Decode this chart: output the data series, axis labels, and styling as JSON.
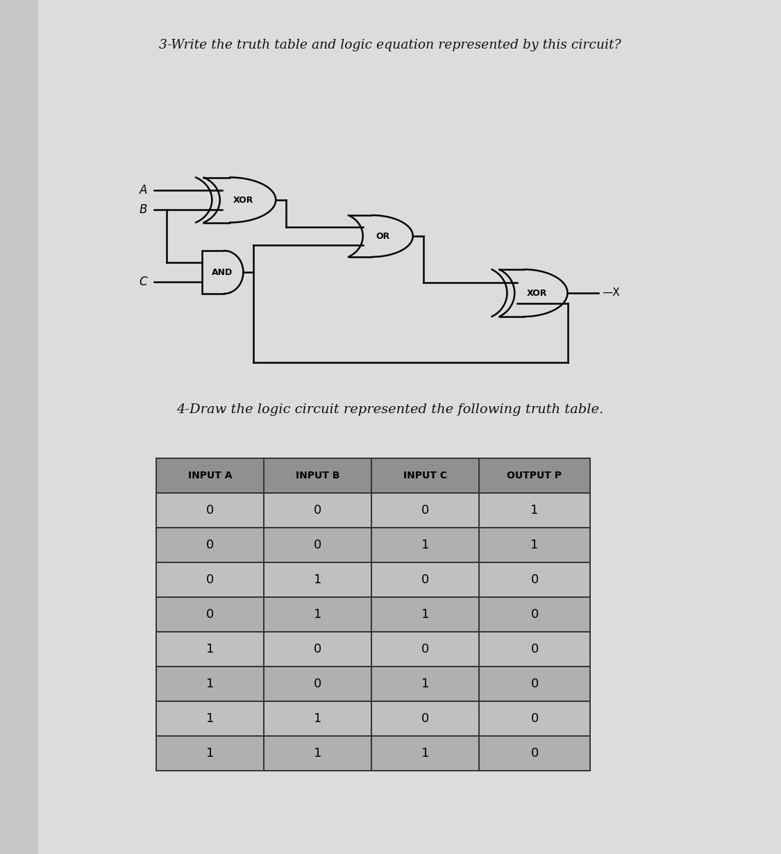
{
  "title3": "3-Write the truth table and logic equation represented by this circuit?",
  "title4": "4-Draw the logic circuit represented the following truth table.",
  "table_headers": [
    "INPUT A",
    "INPUT B",
    "INPUT C",
    "OUTPUT P"
  ],
  "table_data": [
    [
      0,
      0,
      0,
      1
    ],
    [
      0,
      0,
      1,
      1
    ],
    [
      0,
      1,
      0,
      0
    ],
    [
      0,
      1,
      1,
      0
    ],
    [
      1,
      0,
      0,
      0
    ],
    [
      1,
      0,
      1,
      0
    ],
    [
      1,
      1,
      0,
      0
    ],
    [
      1,
      1,
      1,
      0
    ]
  ],
  "bg_color": "#c8c8c8",
  "page_color": "#dcdcdc",
  "header_bg": "#909090",
  "row_bg_light": "#c0c0c0",
  "row_bg_dark": "#b0b0b0",
  "gate_lw": 1.8,
  "gate_color": "#000000"
}
